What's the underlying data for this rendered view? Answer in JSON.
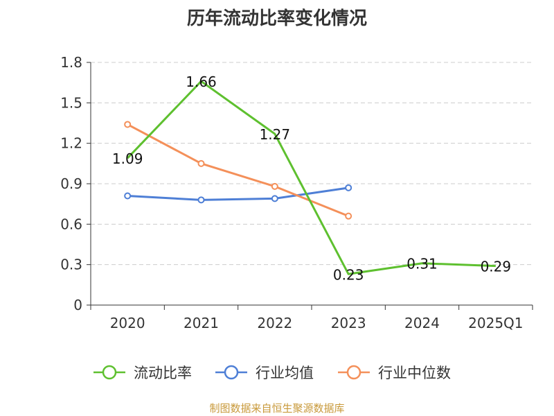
{
  "title": "历年流动比率变化情况",
  "source": "制图数据来自恒生聚源数据库",
  "chart_data": {
    "type": "line",
    "title": "历年流动比率变化情况",
    "categories": [
      "2020",
      "2021",
      "2022",
      "2023",
      "2024",
      "2025Q1"
    ],
    "ylim": [
      0,
      1.8
    ],
    "yticks": [
      "0",
      "0.3",
      "0.6",
      "0.9",
      "1.2",
      "1.5",
      "1.8"
    ],
    "grid": true,
    "legend_position": "bottom",
    "series": [
      {
        "name": "流动比率",
        "color": "#5ec02f",
        "markers": false,
        "values": [
          1.09,
          1.66,
          1.27,
          0.23,
          0.31,
          0.29
        ],
        "labels": [
          "1.09",
          "1.66",
          "1.27",
          "0.23",
          "0.31",
          "0.29"
        ]
      },
      {
        "name": "行业均值",
        "color": "#4e7fd6",
        "markers": true,
        "values": [
          0.81,
          0.78,
          0.79,
          0.87,
          null,
          null
        ]
      },
      {
        "name": "行业中位数",
        "color": "#f4905a",
        "markers": true,
        "values": [
          1.34,
          1.05,
          0.88,
          0.66,
          null,
          null
        ]
      }
    ]
  }
}
